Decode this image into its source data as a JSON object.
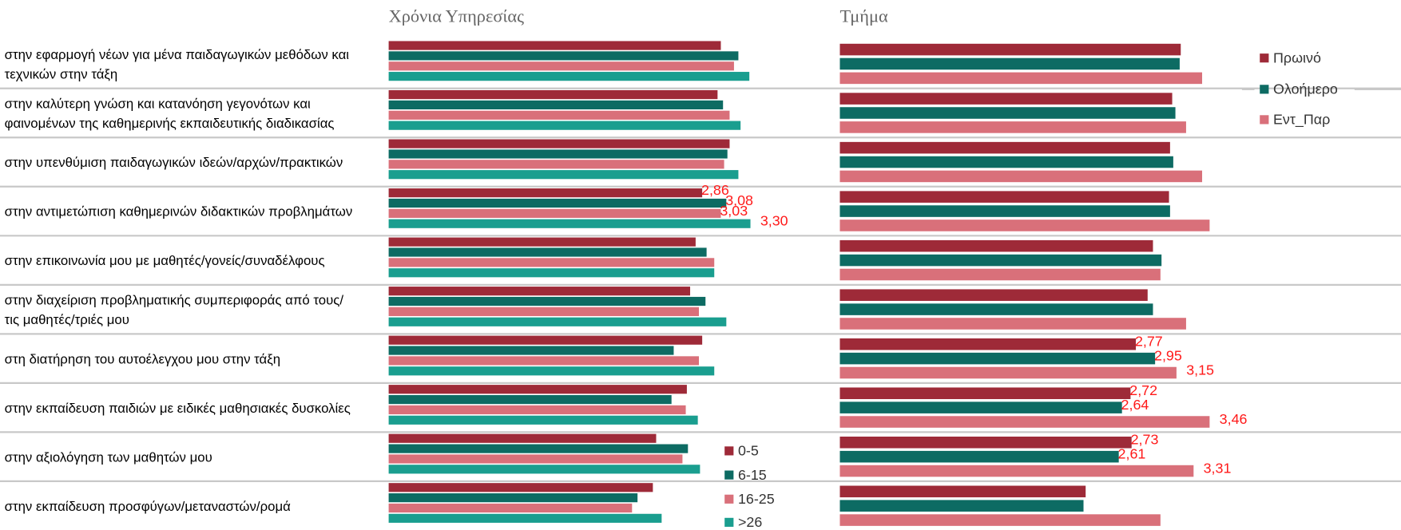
{
  "chart_data": [
    {
      "type": "bar",
      "title": "Χρόνια Υπηρεσίας",
      "categories": [
        "στην εφαρμογή νέων για μένα παιδαγωγικών μεθόδων και τεχνικών στην τάξη",
        "στην καλύτερη γνώση και κατανόηση γεγονότων και φαινομένων της καθημερινής εκπαιδευτικής διαδικασίας",
        "στην υπενθύμιση παιδαγωγικών ιδεών/αρχών/πρακτικών",
        "στην αντιμετώπιση καθημερινών διδακτικών προβλημάτων",
        "στην επικοινωνία μου με μαθητές/γονείς/συναδέλφους",
        "στην διαχείριση προβληματικής συμπεριφοράς από τους/τις μαθητές/τριές μου",
        "στη διατήρηση του αυτοέλεγχου μου στην τάξη",
        "στην εκπαίδευση παιδιών με ειδικές μαθησιακές δυσκολίες",
        "στην αξιολόγηση των μαθητών μου",
        "στην εκπαίδευση προσφύγων/μεταναστών/ρομά"
      ],
      "xlim": [
        0,
        4
      ],
      "series": [
        {
          "name": "0-5",
          "color": "#9e2a38",
          "values": [
            3.03,
            3.0,
            3.11,
            2.86,
            2.8,
            2.75,
            2.86,
            2.72,
            2.44,
            2.41
          ],
          "value_labels": [
            null,
            null,
            null,
            "2,86",
            null,
            null,
            null,
            null,
            null,
            null
          ]
        },
        {
          "name": "6-15",
          "color": "#0d6b63",
          "values": [
            3.19,
            3.05,
            3.09,
            3.08,
            2.9,
            2.89,
            2.6,
            2.58,
            2.73,
            2.27
          ],
          "value_labels": [
            null,
            null,
            null,
            "3,08",
            null,
            null,
            null,
            null,
            null,
            null
          ]
        },
        {
          "name": "16-25",
          "color": "#d9707a",
          "values": [
            3.15,
            3.11,
            3.06,
            3.03,
            2.97,
            2.83,
            2.83,
            2.71,
            2.68,
            2.22
          ],
          "value_labels": [
            null,
            null,
            null,
            "3,03",
            null,
            null,
            null,
            null,
            null,
            null
          ]
        },
        {
          "name": ">26",
          "color": "#1a9e8f",
          "values": [
            3.29,
            3.21,
            3.19,
            3.3,
            2.97,
            3.08,
            2.97,
            2.82,
            2.84,
            2.49
          ],
          "value_labels": [
            null,
            null,
            null,
            "3,30",
            null,
            null,
            null,
            null,
            null,
            null
          ]
        }
      ]
    },
    {
      "type": "bar",
      "title": "Τμήμα",
      "xlim": [
        0,
        4
      ],
      "series": [
        {
          "name": "Πρωινό",
          "color": "#9e2a38",
          "values": [
            3.19,
            3.11,
            3.09,
            3.08,
            2.93,
            2.88,
            2.77,
            2.72,
            2.73,
            2.3
          ],
          "value_labels": [
            null,
            null,
            null,
            null,
            null,
            null,
            "2,77",
            "2,72",
            "2,73",
            null
          ]
        },
        {
          "name": "Ολοήμερο",
          "color": "#0d6b63",
          "values": [
            3.18,
            3.14,
            3.12,
            3.09,
            3.01,
            2.93,
            2.95,
            2.64,
            2.61,
            2.28
          ],
          "value_labels": [
            null,
            null,
            null,
            null,
            null,
            null,
            "2,95",
            "2,64",
            "2,61",
            null
          ]
        },
        {
          "name": "Εντ_Παρ",
          "color": "#d9707a",
          "values": [
            3.39,
            3.24,
            3.39,
            3.46,
            3.0,
            3.24,
            3.15,
            3.46,
            3.31,
            3.0
          ],
          "value_labels": [
            null,
            null,
            null,
            null,
            null,
            null,
            "3,15",
            "3,46",
            "3,31",
            null
          ]
        }
      ]
    }
  ]
}
